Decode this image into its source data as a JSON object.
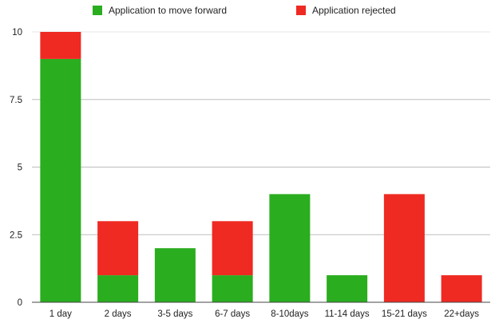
{
  "chart_data": {
    "type": "bar",
    "stacked": true,
    "categories": [
      "1 day",
      "2 days",
      "3-5 days",
      "6-7 days",
      "8-10days",
      "11-14 days",
      "15-21 days",
      "22+days"
    ],
    "series": [
      {
        "name": "Application to move forward",
        "color": "#2aad1f",
        "values": [
          9,
          1,
          2,
          1,
          4,
          1,
          0,
          0
        ]
      },
      {
        "name": "Application rejected",
        "color": "#ee2a22",
        "values": [
          1,
          2,
          0,
          2,
          0,
          0,
          4,
          1
        ]
      }
    ],
    "title": "",
    "xlabel": "",
    "ylabel": "",
    "ylim": [
      0,
      10
    ],
    "yticks": [
      0,
      2.5,
      5,
      7.5,
      10
    ],
    "ytick_labels": [
      "0",
      "2.5",
      "5",
      "7.5",
      "10"
    ],
    "grid": true,
    "legend_position": "top"
  }
}
